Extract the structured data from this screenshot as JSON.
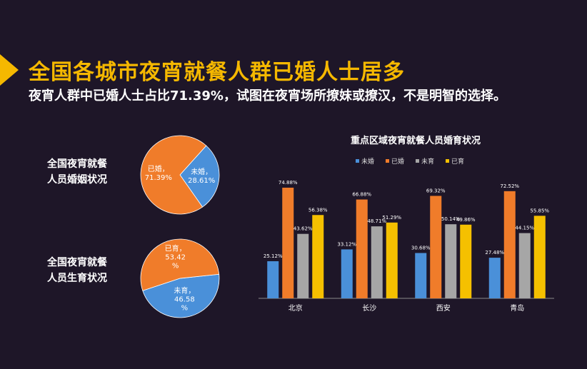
{
  "header": {
    "title": "全国各城市夜宵就餐人群已婚人士居多",
    "subtitle": "夜宵人群中已婚人士占比71.39%，试图在夜宵场所撩妹或撩汉，不是明智的选择。"
  },
  "colors": {
    "accent": "#f5b800",
    "single": "#4a90d9",
    "married": "#f07c2a",
    "no_child": "#a6a6a6",
    "has_child": "#f5c000",
    "background": "#1e1628"
  },
  "chart_data": [
    {
      "type": "pie",
      "title_lines": [
        "全国夜宵就餐",
        "人员婚姻状况"
      ],
      "slices": [
        {
          "name": "未婚",
          "value": 28.61,
          "label_lines": [
            "未婚，",
            "28.61%"
          ],
          "color": "#4a90d9"
        },
        {
          "name": "已婚",
          "value": 71.39,
          "label_lines": [
            "已婚，",
            "71.39%"
          ],
          "color": "#f07c2a"
        }
      ]
    },
    {
      "type": "pie",
      "title_lines": [
        "全国夜宵就餐",
        "人员生育状况"
      ],
      "slices": [
        {
          "name": "未育",
          "value": 46.58,
          "label_lines": [
            "未育，",
            "46.58",
            "%"
          ],
          "color": "#4a90d9"
        },
        {
          "name": "已育",
          "value": 53.42,
          "label_lines": [
            "已育，",
            "53.42",
            "%"
          ],
          "color": "#f07c2a"
        }
      ]
    },
    {
      "type": "bar",
      "title": "重点区域夜宵就餐人员婚育状况",
      "categories": [
        "北京",
        "长沙",
        "西安",
        "青岛"
      ],
      "ylim": [
        0,
        85
      ],
      "grid": false,
      "legend": "top",
      "series": [
        {
          "name": "未婚",
          "color": "#4a90d9",
          "values": [
            25.12,
            33.12,
            30.68,
            27.48
          ],
          "labels": [
            "25.12%",
            "33.12%",
            "30.68%",
            "27.48%"
          ]
        },
        {
          "name": "已婚",
          "color": "#f07c2a",
          "values": [
            74.88,
            66.88,
            69.32,
            72.52
          ],
          "labels": [
            "74.88%",
            "66.88%",
            "69.32%",
            "72.52%"
          ]
        },
        {
          "name": "未育",
          "color": "#a6a6a6",
          "values": [
            43.62,
            48.71,
            50.14,
            44.15
          ],
          "labels": [
            "43.62%",
            "48.71%",
            "50.14%",
            "44.15%"
          ]
        },
        {
          "name": "已育",
          "color": "#f5c000",
          "values": [
            56.38,
            51.29,
            49.86,
            55.85
          ],
          "labels": [
            "56.38%",
            "51.29%",
            "49.86%",
            "55.85%"
          ]
        }
      ]
    }
  ]
}
